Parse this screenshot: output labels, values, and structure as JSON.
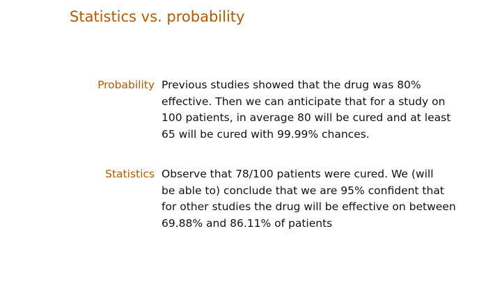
{
  "slide": {
    "title": "Statistics vs. probability",
    "definitions": [
      {
        "term": "Probability",
        "lines": [
          "Previous studies showed that the drug was 80%",
          "effective.  Then we can anticipate that for a study on",
          "100 patients, in average 80 will be cured and at least",
          "65 will be cured with 99.99% chances."
        ]
      },
      {
        "term": "Statistics",
        "lines": [
          "Observe that 78/100 patients were cured.  We (will",
          "be able to) conclude that we are 95% confident that",
          "for other studies the drug will be effective on between",
          "69.88% and 86.11% of patients"
        ]
      }
    ],
    "colors": {
      "accent": "#b35a00",
      "text": "#111111",
      "background": "#ffffff"
    }
  }
}
